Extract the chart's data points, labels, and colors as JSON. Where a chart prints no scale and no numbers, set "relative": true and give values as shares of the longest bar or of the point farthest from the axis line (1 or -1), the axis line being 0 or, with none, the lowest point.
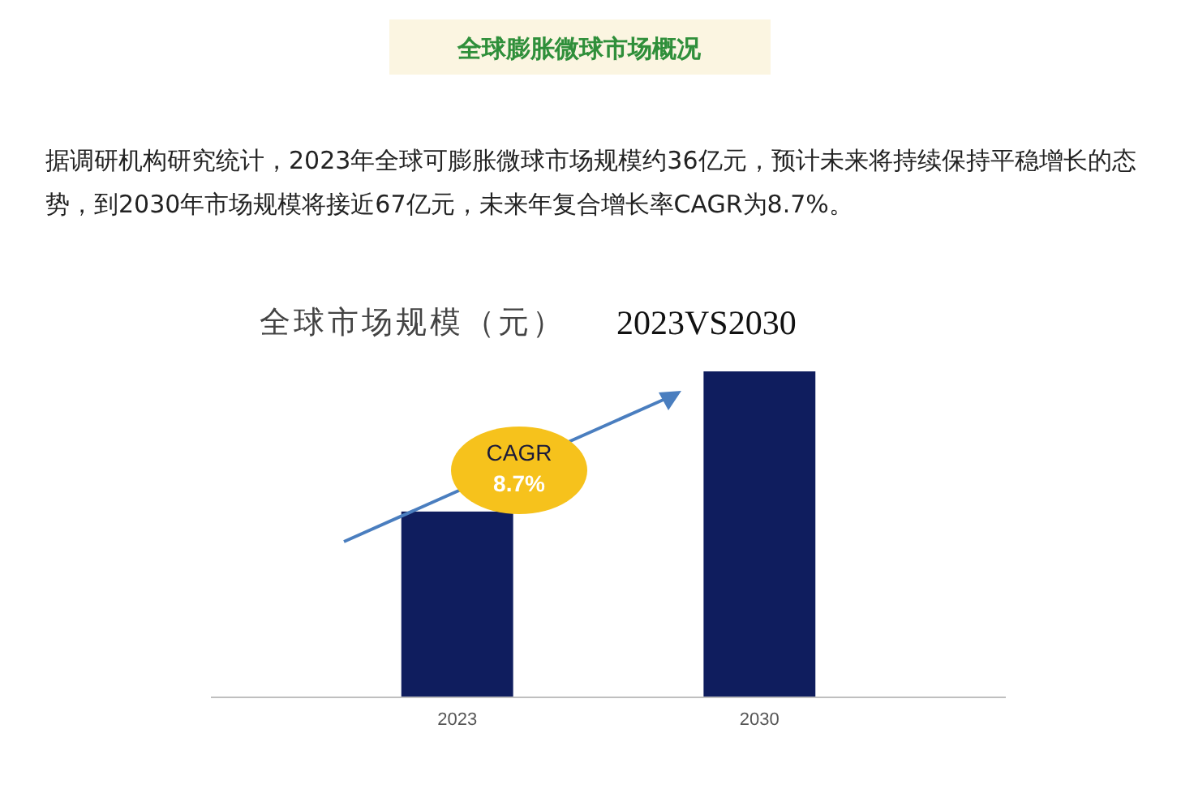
{
  "chart_data": {
    "type": "bar",
    "title": "全球膨胀微球市场概况",
    "subtitle": "据调研机构研究统计，2023年全球可膨胀微球市场规模约36亿元，预计未来将持续保持平稳增长的态势，到2030年市场规模将接近67亿元，未来年复合增长率CAGR为8.7%。",
    "annotations": [
      "全球市场规模（元）",
      "2023VS2030",
      "CAGR",
      "8.7%"
    ],
    "categories": [
      "2023",
      "2030"
    ],
    "values": [
      0.57,
      1
    ],
    "color": "#0f1d5e",
    "relative": true
  }
}
